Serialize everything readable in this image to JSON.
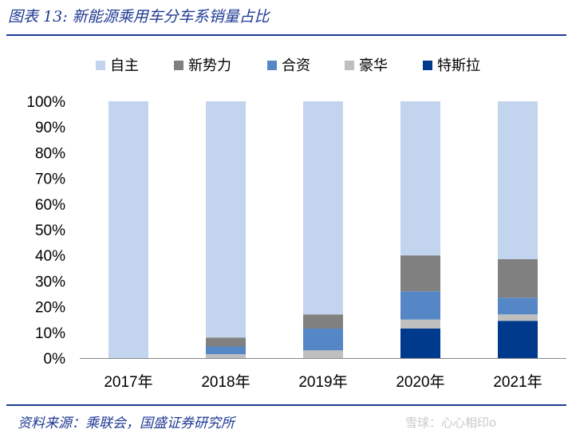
{
  "title": "图表 13: 新能源乘用车分车系销量占比",
  "source": "资料来源：乘联会，国盛证券研究所",
  "watermark": "雪球：心心相印o",
  "chart_data": {
    "type": "bar",
    "stacked": true,
    "categories": [
      "2017年",
      "2018年",
      "2019年",
      "2020年",
      "2021年"
    ],
    "ylim": [
      0,
      100
    ],
    "yticks": [
      "0%",
      "10%",
      "20%",
      "30%",
      "40%",
      "50%",
      "60%",
      "70%",
      "80%",
      "90%",
      "100%"
    ],
    "legend_position": "top",
    "series": [
      {
        "name": "特斯拉",
        "color": "#003a8c",
        "values": [
          0,
          0,
          0,
          11.5,
          14.5
        ]
      },
      {
        "name": "豪华",
        "color": "#bfbfbf",
        "values": [
          0,
          1.5,
          3,
          3.5,
          2.5
        ]
      },
      {
        "name": "合资",
        "color": "#5587c6",
        "values": [
          0,
          3,
          8.5,
          11,
          6.5
        ]
      },
      {
        "name": "新势力",
        "color": "#808080",
        "values": [
          0,
          3.5,
          5.5,
          14,
          15
        ]
      },
      {
        "name": "自主",
        "color": "#c3d5ee",
        "values": [
          100,
          92,
          83,
          60,
          61.5
        ]
      }
    ],
    "legend_order": [
      "自主",
      "新势力",
      "合资",
      "豪华",
      "特斯拉"
    ]
  }
}
